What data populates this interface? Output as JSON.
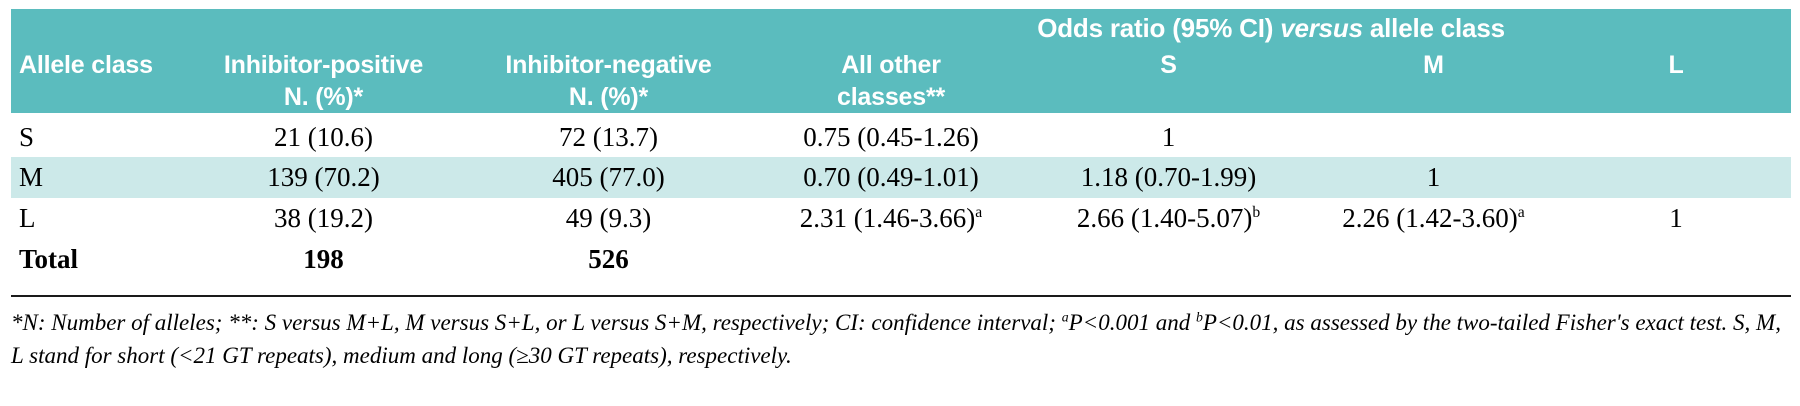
{
  "colors": {
    "header_bg": "#5bbcbe",
    "header_text": "#ffffff",
    "row_highlight": "#cce9e9",
    "rule_color": "#1a1a1a"
  },
  "table": {
    "header": {
      "span_title": {
        "pre": "Odds ratio (95% CI) ",
        "italic": "versus",
        "post": " allele class"
      },
      "col0": {
        "line1": "Allele class"
      },
      "col1": {
        "line1": "Inhibitor-positive",
        "line2": "N. (%)*"
      },
      "col2": {
        "line1": "Inhibitor-negative",
        "line2": "N. (%)*"
      },
      "col3": {
        "line1": "All other",
        "line2": "classes**"
      },
      "col4": {
        "line1": "S"
      },
      "col5": {
        "line1": "M"
      },
      "col6": {
        "line1": "L"
      }
    },
    "rows": [
      {
        "highlight": false,
        "cells": [
          {
            "text": "S"
          },
          {
            "text": "21 (10.6)"
          },
          {
            "text": "72 (13.7)"
          },
          {
            "text": "0.75 (0.45-1.26)"
          },
          {
            "text": "1"
          },
          {
            "text": ""
          },
          {
            "text": ""
          }
        ]
      },
      {
        "highlight": true,
        "cells": [
          {
            "text": "M"
          },
          {
            "text": "139 (70.2)"
          },
          {
            "text": "405 (77.0)"
          },
          {
            "text": "0.70 (0.49-1.01)"
          },
          {
            "text": "1.18 (0.70-1.99)"
          },
          {
            "text": "1"
          },
          {
            "text": ""
          }
        ]
      },
      {
        "highlight": false,
        "cells": [
          {
            "text": "L"
          },
          {
            "text": "38 (19.2)"
          },
          {
            "text": "49 (9.3)"
          },
          {
            "text": "2.31 (1.46-3.66)",
            "sup": "a"
          },
          {
            "text": "2.66 (1.40-5.07)",
            "sup": "b"
          },
          {
            "text": "2.26 (1.42-3.60)",
            "sup": "a"
          },
          {
            "text": "1"
          }
        ]
      },
      {
        "highlight": false,
        "bold": true,
        "cells": [
          {
            "text": "Total"
          },
          {
            "text": "198"
          },
          {
            "text": "526"
          },
          {
            "text": ""
          },
          {
            "text": ""
          },
          {
            "text": ""
          },
          {
            "text": ""
          }
        ]
      }
    ]
  },
  "footnote": {
    "part1": "*N: Number of alleles; **: S versus M+L, M versus S+L, or L versus S+M, respectively; CI: confidence interval; ",
    "sup_a": "a",
    "part2": "P<0.001 and ",
    "sup_b": "b",
    "part3": "P<0.01, as assessed by the two-tailed Fisher's exact test. S, M, L stand for short (<21 GT repeats), medium and long (≥30 GT repeats), respectively."
  }
}
